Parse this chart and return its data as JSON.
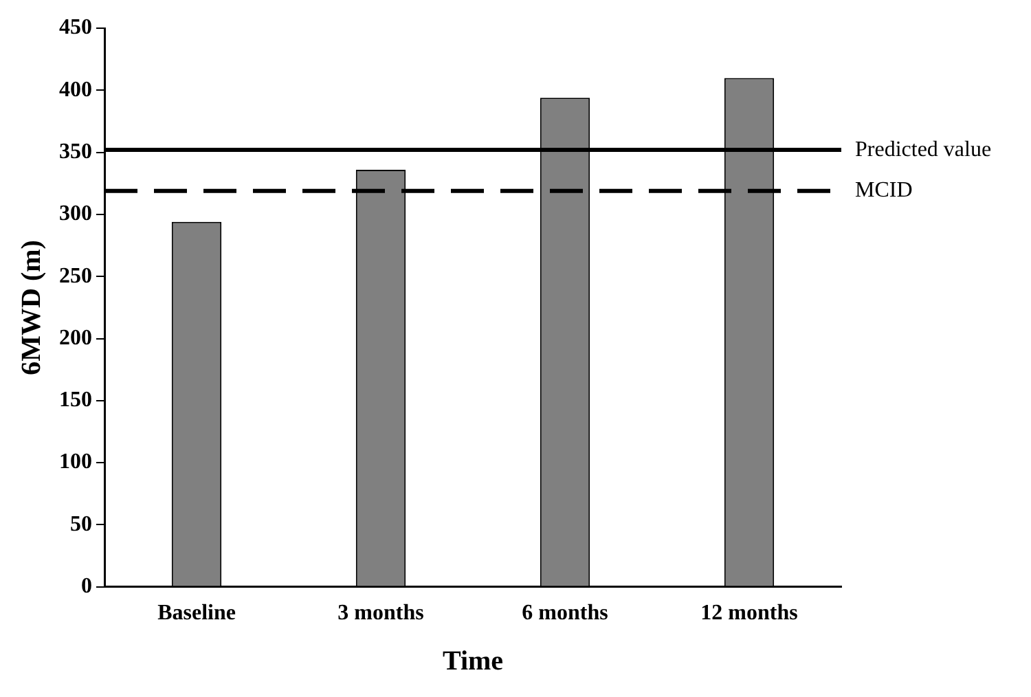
{
  "chart_data": {
    "type": "bar",
    "xlabel": "Time",
    "ylabel": "6MWD (m)",
    "categories": [
      "Baseline",
      "3 months",
      "6 months",
      "12 months"
    ],
    "values": [
      294,
      336,
      394,
      410
    ],
    "color": "#808080",
    "ylim": [
      0,
      450
    ],
    "yticks": [
      0,
      50,
      100,
      150,
      200,
      250,
      300,
      350,
      400,
      450
    ],
    "ref_lines": [
      {
        "axis": "y",
        "value": 352,
        "label": "Predicted value",
        "color": "#000000",
        "line_style": "solid"
      },
      {
        "axis": "y",
        "value": 319,
        "label": "MCID",
        "color": "#000000",
        "line_style": "dashed"
      }
    ],
    "grid": false,
    "legend": false
  }
}
